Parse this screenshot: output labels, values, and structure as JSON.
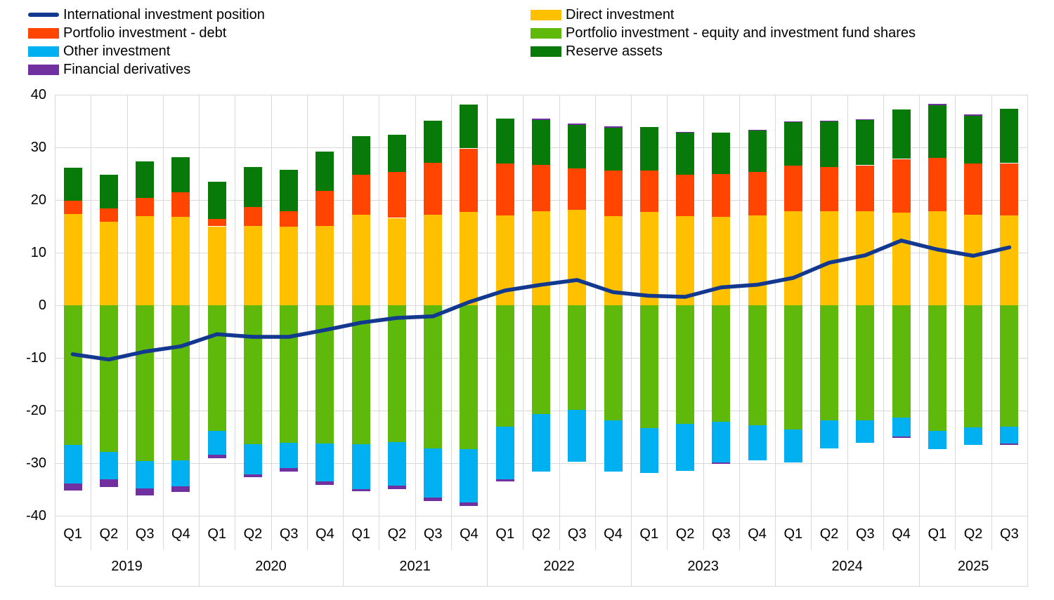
{
  "colors": {
    "line": "#12388F",
    "direct": "#FFC000",
    "portfolio_debt": "#FF4500",
    "portfolio_equity": "#5FB90A",
    "other": "#00B0F0",
    "reserve": "#087A0A",
    "derivatives": "#7030A0",
    "grid": "#D9D9D9",
    "background": "#FFFFFF"
  },
  "legend": {
    "columns": [
      {
        "items": [
          {
            "label": "International investment position",
            "marker": "line",
            "color": "#12388F"
          },
          {
            "label": "Portfolio investment - debt",
            "marker": "rect",
            "color": "#FF4500"
          },
          {
            "label": "Other investment",
            "marker": "rect",
            "color": "#00B0F0"
          },
          {
            "label": "Financial derivatives",
            "marker": "rect",
            "color": "#7030A0"
          }
        ]
      },
      {
        "items": [
          {
            "label": "Direct investment",
            "marker": "rect",
            "color": "#FFC000"
          },
          {
            "label": "Portfolio investment - equity and investment fund shares",
            "marker": "rect",
            "color": "#5FB90A"
          },
          {
            "label": "Reserve assets",
            "marker": "rect",
            "color": "#087A0A"
          }
        ]
      }
    ]
  },
  "chart_data": {
    "type": "stacked-bar+line",
    "title": "",
    "xlabel": "",
    "ylabel": "",
    "ylim": [
      -40,
      40
    ],
    "yticks": [
      40,
      30,
      20,
      10,
      0,
      -10,
      -20,
      -30,
      -40
    ],
    "grid": true,
    "legend_position": "top",
    "categories": [
      "Q1",
      "Q2",
      "Q3",
      "Q4",
      "Q1",
      "Q2",
      "Q3",
      "Q4",
      "Q1",
      "Q2",
      "Q3",
      "Q4",
      "Q1",
      "Q2",
      "Q3",
      "Q4",
      "Q1",
      "Q2",
      "Q3",
      "Q4",
      "Q1",
      "Q2",
      "Q3",
      "Q4",
      "Q1",
      "Q2",
      "Q3"
    ],
    "year_groups": [
      {
        "label": "2019",
        "quarters": 4
      },
      {
        "label": "2020",
        "quarters": 4
      },
      {
        "label": "2021",
        "quarters": 4
      },
      {
        "label": "2022",
        "quarters": 4
      },
      {
        "label": "2023",
        "quarters": 4
      },
      {
        "label": "2024",
        "quarters": 4
      },
      {
        "label": "2025",
        "quarters": 3
      }
    ],
    "bar_series": [
      {
        "name": "Direct investment",
        "color": "#FFC000",
        "values": [
          17.4,
          15.9,
          17.0,
          16.9,
          15.0,
          15.1,
          15.0,
          15.1,
          17.2,
          16.6,
          17.3,
          17.8,
          17.2,
          17.9,
          18.2,
          17.0,
          17.8,
          16.9,
          16.8,
          17.1,
          17.9,
          17.9,
          18.0,
          17.7,
          17.9,
          17.2,
          17.1
        ]
      },
      {
        "name": "Portfolio investment - debt",
        "color": "#FF4500",
        "values": [
          2.6,
          2.5,
          3.4,
          4.6,
          1.5,
          3.6,
          2.9,
          6.6,
          7.6,
          8.7,
          9.8,
          12.0,
          9.8,
          8.8,
          7.8,
          8.6,
          7.8,
          7.9,
          8.1,
          8.2,
          8.6,
          8.4,
          8.6,
          10.1,
          10.1,
          9.7,
          9.9
        ]
      },
      {
        "name": "Reserve assets",
        "color": "#087A0A",
        "values": [
          6.2,
          6.4,
          6.9,
          6.7,
          7.0,
          7.6,
          7.8,
          7.5,
          7.3,
          7.1,
          8.0,
          8.3,
          8.5,
          8.5,
          8.3,
          8.2,
          8.3,
          8.0,
          7.9,
          7.9,
          8.4,
          8.7,
          8.7,
          9.4,
          10.0,
          9.2,
          10.3
        ]
      },
      {
        "name": "Portfolio investment - equity and investment fund shares",
        "color": "#5FB90A",
        "values": [
          -26.5,
          -27.8,
          -29.6,
          -29.4,
          -23.9,
          -26.4,
          -26.1,
          -26.3,
          -26.4,
          -26.0,
          -27.2,
          -27.3,
          -23.0,
          -20.7,
          -19.8,
          -21.8,
          -23.3,
          -22.5,
          -22.1,
          -22.8,
          -23.6,
          -21.9,
          -21.9,
          -21.3,
          -23.8,
          -23.2,
          -23.0
        ]
      },
      {
        "name": "Other investment",
        "color": "#00B0F0",
        "values": [
          -7.3,
          -5.3,
          -5.2,
          -5.0,
          -4.5,
          -5.7,
          -4.8,
          -7.2,
          -8.5,
          -8.3,
          -9.3,
          -10.2,
          -10.1,
          -10.9,
          -9.8,
          -9.7,
          -8.5,
          -8.9,
          -7.7,
          -6.7,
          -6.2,
          -5.3,
          -4.3,
          -3.6,
          -3.5,
          -3.3,
          -3.3
        ]
      },
      {
        "name": "Financial derivatives",
        "color": "#7030A0",
        "values": [
          -1.3,
          -1.4,
          -1.3,
          -1.1,
          -0.6,
          -0.5,
          -0.7,
          -0.6,
          -0.4,
          -0.6,
          -0.7,
          -0.6,
          -0.4,
          0.2,
          0.2,
          0.2,
          0.0,
          0.1,
          -0.2,
          0.1,
          0.1,
          0.1,
          0.1,
          -0.2,
          0.3,
          0.2,
          -0.3
        ]
      }
    ],
    "line_series": {
      "name": "International investment position",
      "color": "#12388F",
      "values": [
        -9.3,
        -10.3,
        -8.8,
        -7.8,
        -5.5,
        -6.0,
        -6.0,
        -4.7,
        -3.3,
        -2.4,
        -2.1,
        0.6,
        2.8,
        3.9,
        4.8,
        2.5,
        1.8,
        1.6,
        3.4,
        3.9,
        5.2,
        8.1,
        9.5,
        12.3,
        10.6,
        9.4,
        11.0
      ]
    }
  }
}
